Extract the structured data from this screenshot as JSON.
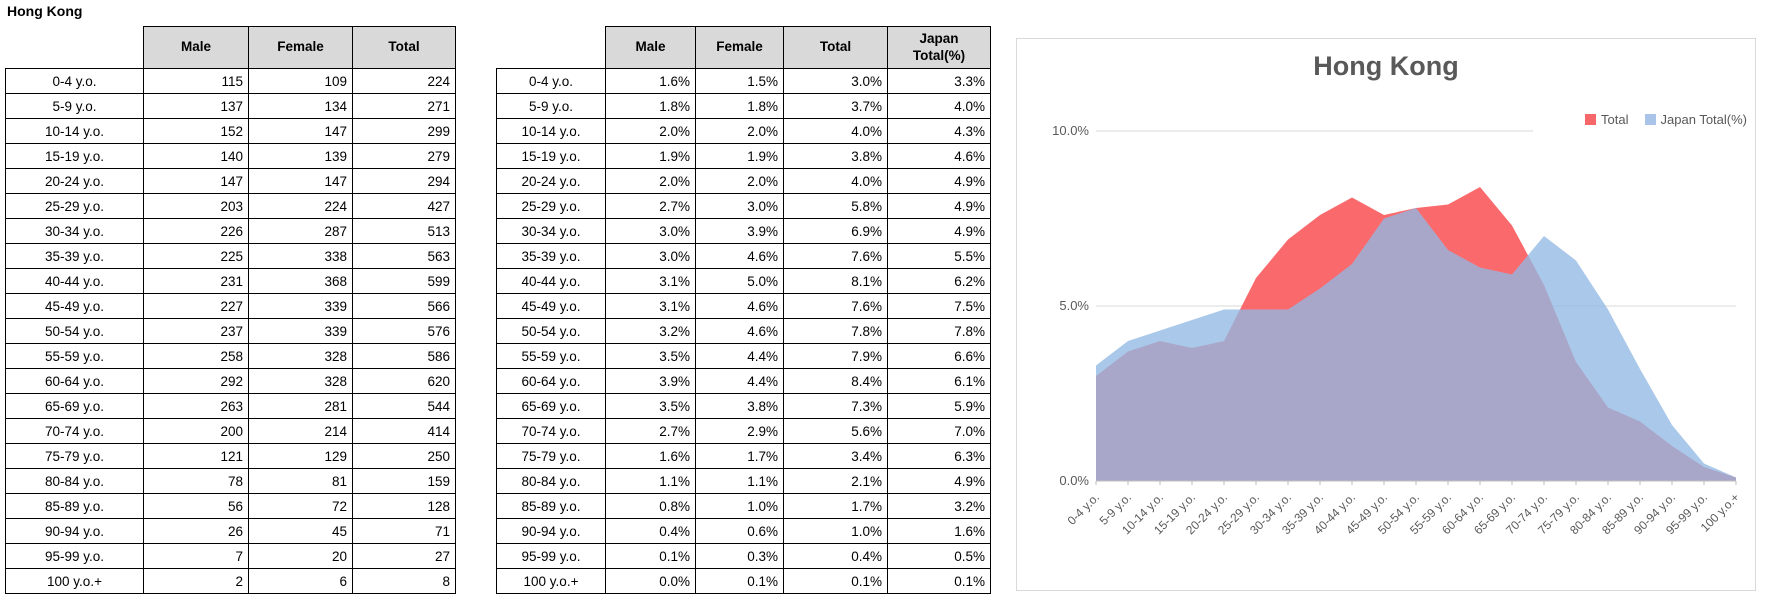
{
  "page_title": "Hong Kong",
  "tables": {
    "counts": {
      "headers": [
        "Male",
        "Female",
        "Total"
      ],
      "rows": [
        [
          "0-4 y.o.",
          "115",
          "109",
          "224"
        ],
        [
          "5-9 y.o.",
          "137",
          "134",
          "271"
        ],
        [
          "10-14 y.o.",
          "152",
          "147",
          "299"
        ],
        [
          "15-19 y.o.",
          "140",
          "139",
          "279"
        ],
        [
          "20-24 y.o.",
          "147",
          "147",
          "294"
        ],
        [
          "25-29 y.o.",
          "203",
          "224",
          "427"
        ],
        [
          "30-34 y.o.",
          "226",
          "287",
          "513"
        ],
        [
          "35-39 y.o.",
          "225",
          "338",
          "563"
        ],
        [
          "40-44 y.o.",
          "231",
          "368",
          "599"
        ],
        [
          "45-49 y.o.",
          "227",
          "339",
          "566"
        ],
        [
          "50-54 y.o.",
          "237",
          "339",
          "576"
        ],
        [
          "55-59 y.o.",
          "258",
          "328",
          "586"
        ],
        [
          "60-64 y.o.",
          "292",
          "328",
          "620"
        ],
        [
          "65-69 y.o.",
          "263",
          "281",
          "544"
        ],
        [
          "70-74 y.o.",
          "200",
          "214",
          "414"
        ],
        [
          "75-79 y.o.",
          "121",
          "129",
          "250"
        ],
        [
          "80-84 y.o.",
          "78",
          "81",
          "159"
        ],
        [
          "85-89 y.o.",
          "56",
          "72",
          "128"
        ],
        [
          "90-94 y.o.",
          "26",
          "45",
          "71"
        ],
        [
          "95-99 y.o.",
          "7",
          "20",
          "27"
        ],
        [
          "100 y.o.+",
          "2",
          "6",
          "8"
        ]
      ]
    },
    "percent": {
      "headers": [
        "Male",
        "Female",
        "Total",
        "Japan\nTotal(%)"
      ],
      "rows": [
        [
          "0-4 y.o.",
          "1.6%",
          "1.5%",
          "3.0%",
          "3.3%"
        ],
        [
          "5-9 y.o.",
          "1.8%",
          "1.8%",
          "3.7%",
          "4.0%"
        ],
        [
          "10-14 y.o.",
          "2.0%",
          "2.0%",
          "4.0%",
          "4.3%"
        ],
        [
          "15-19 y.o.",
          "1.9%",
          "1.9%",
          "3.8%",
          "4.6%"
        ],
        [
          "20-24 y.o.",
          "2.0%",
          "2.0%",
          "4.0%",
          "4.9%"
        ],
        [
          "25-29 y.o.",
          "2.7%",
          "3.0%",
          "5.8%",
          "4.9%"
        ],
        [
          "30-34 y.o.",
          "3.0%",
          "3.9%",
          "6.9%",
          "4.9%"
        ],
        [
          "35-39 y.o.",
          "3.0%",
          "4.6%",
          "7.6%",
          "5.5%"
        ],
        [
          "40-44 y.o.",
          "3.1%",
          "5.0%",
          "8.1%",
          "6.2%"
        ],
        [
          "45-49 y.o.",
          "3.1%",
          "4.6%",
          "7.6%",
          "7.5%"
        ],
        [
          "50-54 y.o.",
          "3.2%",
          "4.6%",
          "7.8%",
          "7.8%"
        ],
        [
          "55-59 y.o.",
          "3.5%",
          "4.4%",
          "7.9%",
          "6.6%"
        ],
        [
          "60-64 y.o.",
          "3.9%",
          "4.4%",
          "8.4%",
          "6.1%"
        ],
        [
          "65-69 y.o.",
          "3.5%",
          "3.8%",
          "7.3%",
          "5.9%"
        ],
        [
          "70-74 y.o.",
          "2.7%",
          "2.9%",
          "5.6%",
          "7.0%"
        ],
        [
          "75-79 y.o.",
          "1.6%",
          "1.7%",
          "3.4%",
          "6.3%"
        ],
        [
          "80-84 y.o.",
          "1.1%",
          "1.1%",
          "2.1%",
          "4.9%"
        ],
        [
          "85-89 y.o.",
          "0.8%",
          "1.0%",
          "1.7%",
          "3.2%"
        ],
        [
          "90-94 y.o.",
          "0.4%",
          "0.6%",
          "1.0%",
          "1.6%"
        ],
        [
          "95-99 y.o.",
          "0.1%",
          "0.3%",
          "0.4%",
          "0.5%"
        ],
        [
          "100 y.o.+",
          "0.0%",
          "0.1%",
          "0.1%",
          "0.1%"
        ]
      ]
    }
  },
  "chart_data": {
    "type": "area",
    "title": "Hong Kong",
    "categories": [
      "0-4 y.o.",
      "5-9 y.o.",
      "10-14 y.o.",
      "15-19 y.o.",
      "20-24 y.o.",
      "25-29 y.o.",
      "30-34 y.o.",
      "35-39 y.o.",
      "40-44 y.o.",
      "45-49 y.o.",
      "50-54 y.o.",
      "55-59 y.o.",
      "60-64 y.o.",
      "65-69 y.o.",
      "70-74 y.o.",
      "75-79 y.o.",
      "80-84 y.o.",
      "85-89 y.o.",
      "90-94 y.o.",
      "95-99 y.o.",
      "100 y.o.+"
    ],
    "series": [
      {
        "name": "Total",
        "legend_color": "#F6676A",
        "fill": "rgba(249,80,84,0.85)",
        "values": [
          3.0,
          3.7,
          4.0,
          3.8,
          4.0,
          5.8,
          6.9,
          7.6,
          8.1,
          7.6,
          7.8,
          7.9,
          8.4,
          7.3,
          5.6,
          3.4,
          2.1,
          1.7,
          1.0,
          0.4,
          0.1
        ]
      },
      {
        "name": "Japan Total(%)",
        "legend_color": "#A9C4E8",
        "fill": "rgba(146,184,227,0.78)",
        "values": [
          3.3,
          4.0,
          4.3,
          4.6,
          4.9,
          4.9,
          4.9,
          5.5,
          6.2,
          7.5,
          7.8,
          6.6,
          6.1,
          5.9,
          7.0,
          6.3,
          4.9,
          3.2,
          1.6,
          0.5,
          0.1
        ]
      }
    ],
    "y_ticks": [
      {
        "label": "0.0%",
        "value": 0
      },
      {
        "label": "5.0%",
        "value": 5
      },
      {
        "label": "10.0%",
        "value": 10
      }
    ],
    "ylim": [
      0,
      10
    ],
    "legend_position": "top-right",
    "grid": true,
    "axis_color": "#BFBFBF",
    "grid_color": "#D9D9D9",
    "text_color": "#595959"
  }
}
